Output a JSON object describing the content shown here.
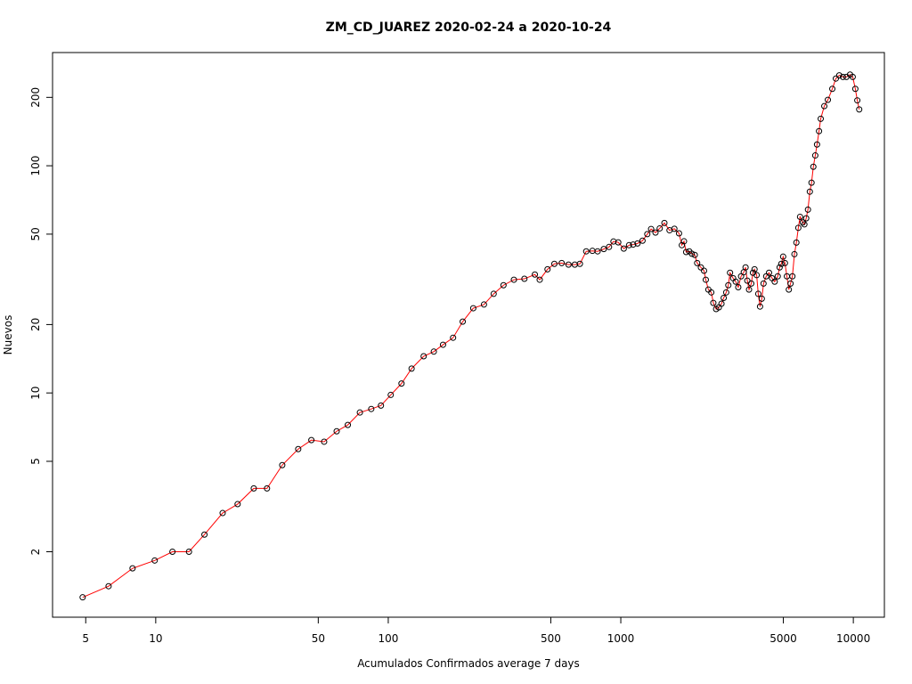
{
  "chart_data": {
    "type": "line",
    "title": "ZM_CD_JUAREZ 2020-02-24 a 2020-10-24",
    "xlabel": "Acumulados Confirmados average  7  days",
    "ylabel": "Nuevos",
    "xscale": "log",
    "yscale": "log",
    "xlim": [
      3.6,
      13600
    ],
    "ylim": [
      1.03,
      315
    ],
    "xticks": [
      5,
      10,
      50,
      100,
      500,
      1000,
      5000,
      10000
    ],
    "yticks": [
      2,
      5,
      10,
      20,
      50,
      100,
      200
    ],
    "line_color": "#ff0000",
    "marker_color": "#000000",
    "x": [
      4.85,
      6.27,
      7.95,
      9.9,
      11.8,
      13.9,
      16.2,
      19.4,
      22.5,
      26.4,
      30.1,
      35,
      41,
      46.7,
      53,
      60,
      67,
      75.5,
      84.5,
      93,
      102.5,
      114,
      126,
      142,
      157,
      172,
      190,
      209,
      232,
      258,
      284,
      313,
      347,
      385,
      427,
      448,
      484,
      518,
      557,
      596,
      634,
      667,
      710,
      755,
      795,
      845,
      890,
      930,
      975,
      1030,
      1085,
      1130,
      1180,
      1240,
      1300,
      1350,
      1410,
      1470,
      1540,
      1620,
      1700,
      1780,
      1830,
      1870,
      1910,
      1970,
      2020,
      2080,
      2130,
      2210,
      2280,
      2320,
      2380,
      2450,
      2500,
      2570,
      2640,
      2710,
      2770,
      2840,
      2900,
      2950,
      3040,
      3120,
      3200,
      3290,
      3380,
      3440,
      3500,
      3560,
      3640,
      3700,
      3760,
      3840,
      3900,
      3970,
      4040,
      4110,
      4220,
      4340,
      4470,
      4590,
      4730,
      4820,
      4900,
      4990,
      5080,
      5180,
      5280,
      5370,
      5470,
      5580,
      5690,
      5800,
      5900,
      6060,
      6160,
      6270,
      6380,
      6500,
      6610,
      6730,
      6860,
      6980,
      7120,
      7240,
      7500,
      7770,
      8120,
      8410,
      8700,
      9020,
      9340,
      9680,
      9940,
      10200,
      10400,
      10600
    ],
    "values": [
      1.26,
      1.41,
      1.69,
      1.83,
      2.0,
      2.0,
      2.38,
      2.96,
      3.24,
      3.8,
      3.8,
      4.81,
      5.66,
      6.2,
      6.1,
      6.78,
      7.23,
      8.2,
      8.5,
      8.8,
      9.8,
      11,
      12.8,
      14.5,
      15.2,
      16.3,
      17.5,
      20.6,
      23.6,
      24.5,
      27.3,
      29.8,
      31.5,
      31.8,
      33.2,
      31.5,
      35,
      37,
      37.3,
      36.7,
      36.7,
      37,
      42,
      42.2,
      42,
      43,
      43.9,
      46.4,
      46,
      43.2,
      44.7,
      45,
      45.5,
      46.8,
      50,
      52.7,
      50.8,
      53,
      56,
      52,
      52.8,
      50.4,
      44.7,
      46.5,
      41.7,
      42,
      41,
      40.5,
      37.3,
      35.7,
      34.5,
      31.5,
      28.5,
      27.7,
      24.9,
      23.4,
      23.8,
      24.7,
      26.2,
      27.7,
      29.8,
      33.8,
      32,
      30.9,
      29.2,
      32.6,
      34,
      35.7,
      31.2,
      28.5,
      30.3,
      33.8,
      35,
      33,
      27.3,
      24,
      26,
      30.3,
      32.6,
      33.8,
      32,
      30.9,
      32.6,
      35.7,
      37,
      39.8,
      37.3,
      32.6,
      28.5,
      30.3,
      32.6,
      40.8,
      45.9,
      53.3,
      59.6,
      56.3,
      55.2,
      58.7,
      64.1,
      76.9,
      84.2,
      99,
      111,
      124,
      142,
      161,
      183,
      195,
      218,
      242,
      250,
      246,
      246,
      252,
      246,
      218,
      194,
      177
    ]
  }
}
